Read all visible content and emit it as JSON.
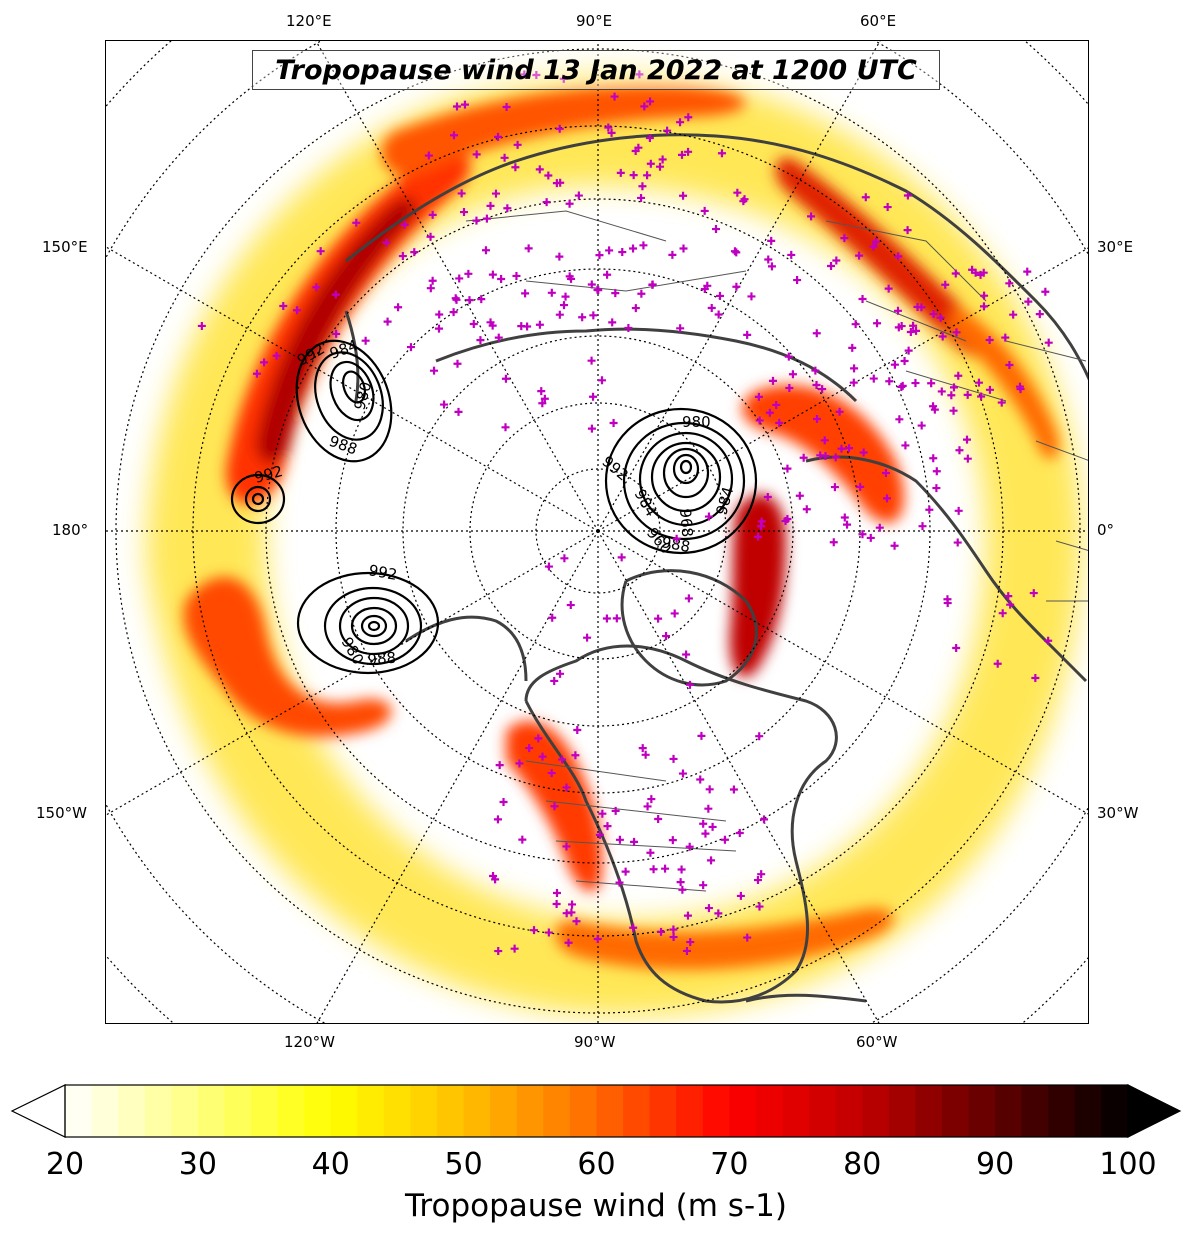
{
  "title": "Tropopause wind 13 Jan 2022 at 1200 UTC",
  "colorbar": {
    "label": "Tropopause wind (m s-1)",
    "min": 20,
    "max": 100,
    "ticks": [
      "20",
      "30",
      "40",
      "50",
      "60",
      "70",
      "80",
      "90",
      "100"
    ],
    "extend": "both",
    "colormap": "hot_r",
    "stops": [
      "#ffffff",
      "#ffff80",
      "#ffff00",
      "#ffc000",
      "#ff6a00",
      "#ff0000",
      "#c00000",
      "#600000",
      "#000000"
    ]
  },
  "longitude_labels": {
    "top": [
      "120°E",
      "90°E",
      "60°E"
    ],
    "bottom": [
      "120°W",
      "90°W",
      "60°W"
    ],
    "left": [
      "150°E",
      "180°",
      "150°W"
    ],
    "right": [
      "30°E",
      "0°",
      "30°W"
    ]
  },
  "projection": "north-polar-stereographic",
  "contour": {
    "variable": "mean sea level pressure",
    "units": "hPa",
    "color": "#000000",
    "labels": [
      "992",
      "984",
      "980",
      "988",
      "992",
      "992",
      "980",
      "988",
      "992",
      "980",
      "968",
      "984",
      "960",
      "988",
      "984"
    ]
  },
  "station_marker_color": "#c000c0",
  "coastline_color": "#404040"
}
